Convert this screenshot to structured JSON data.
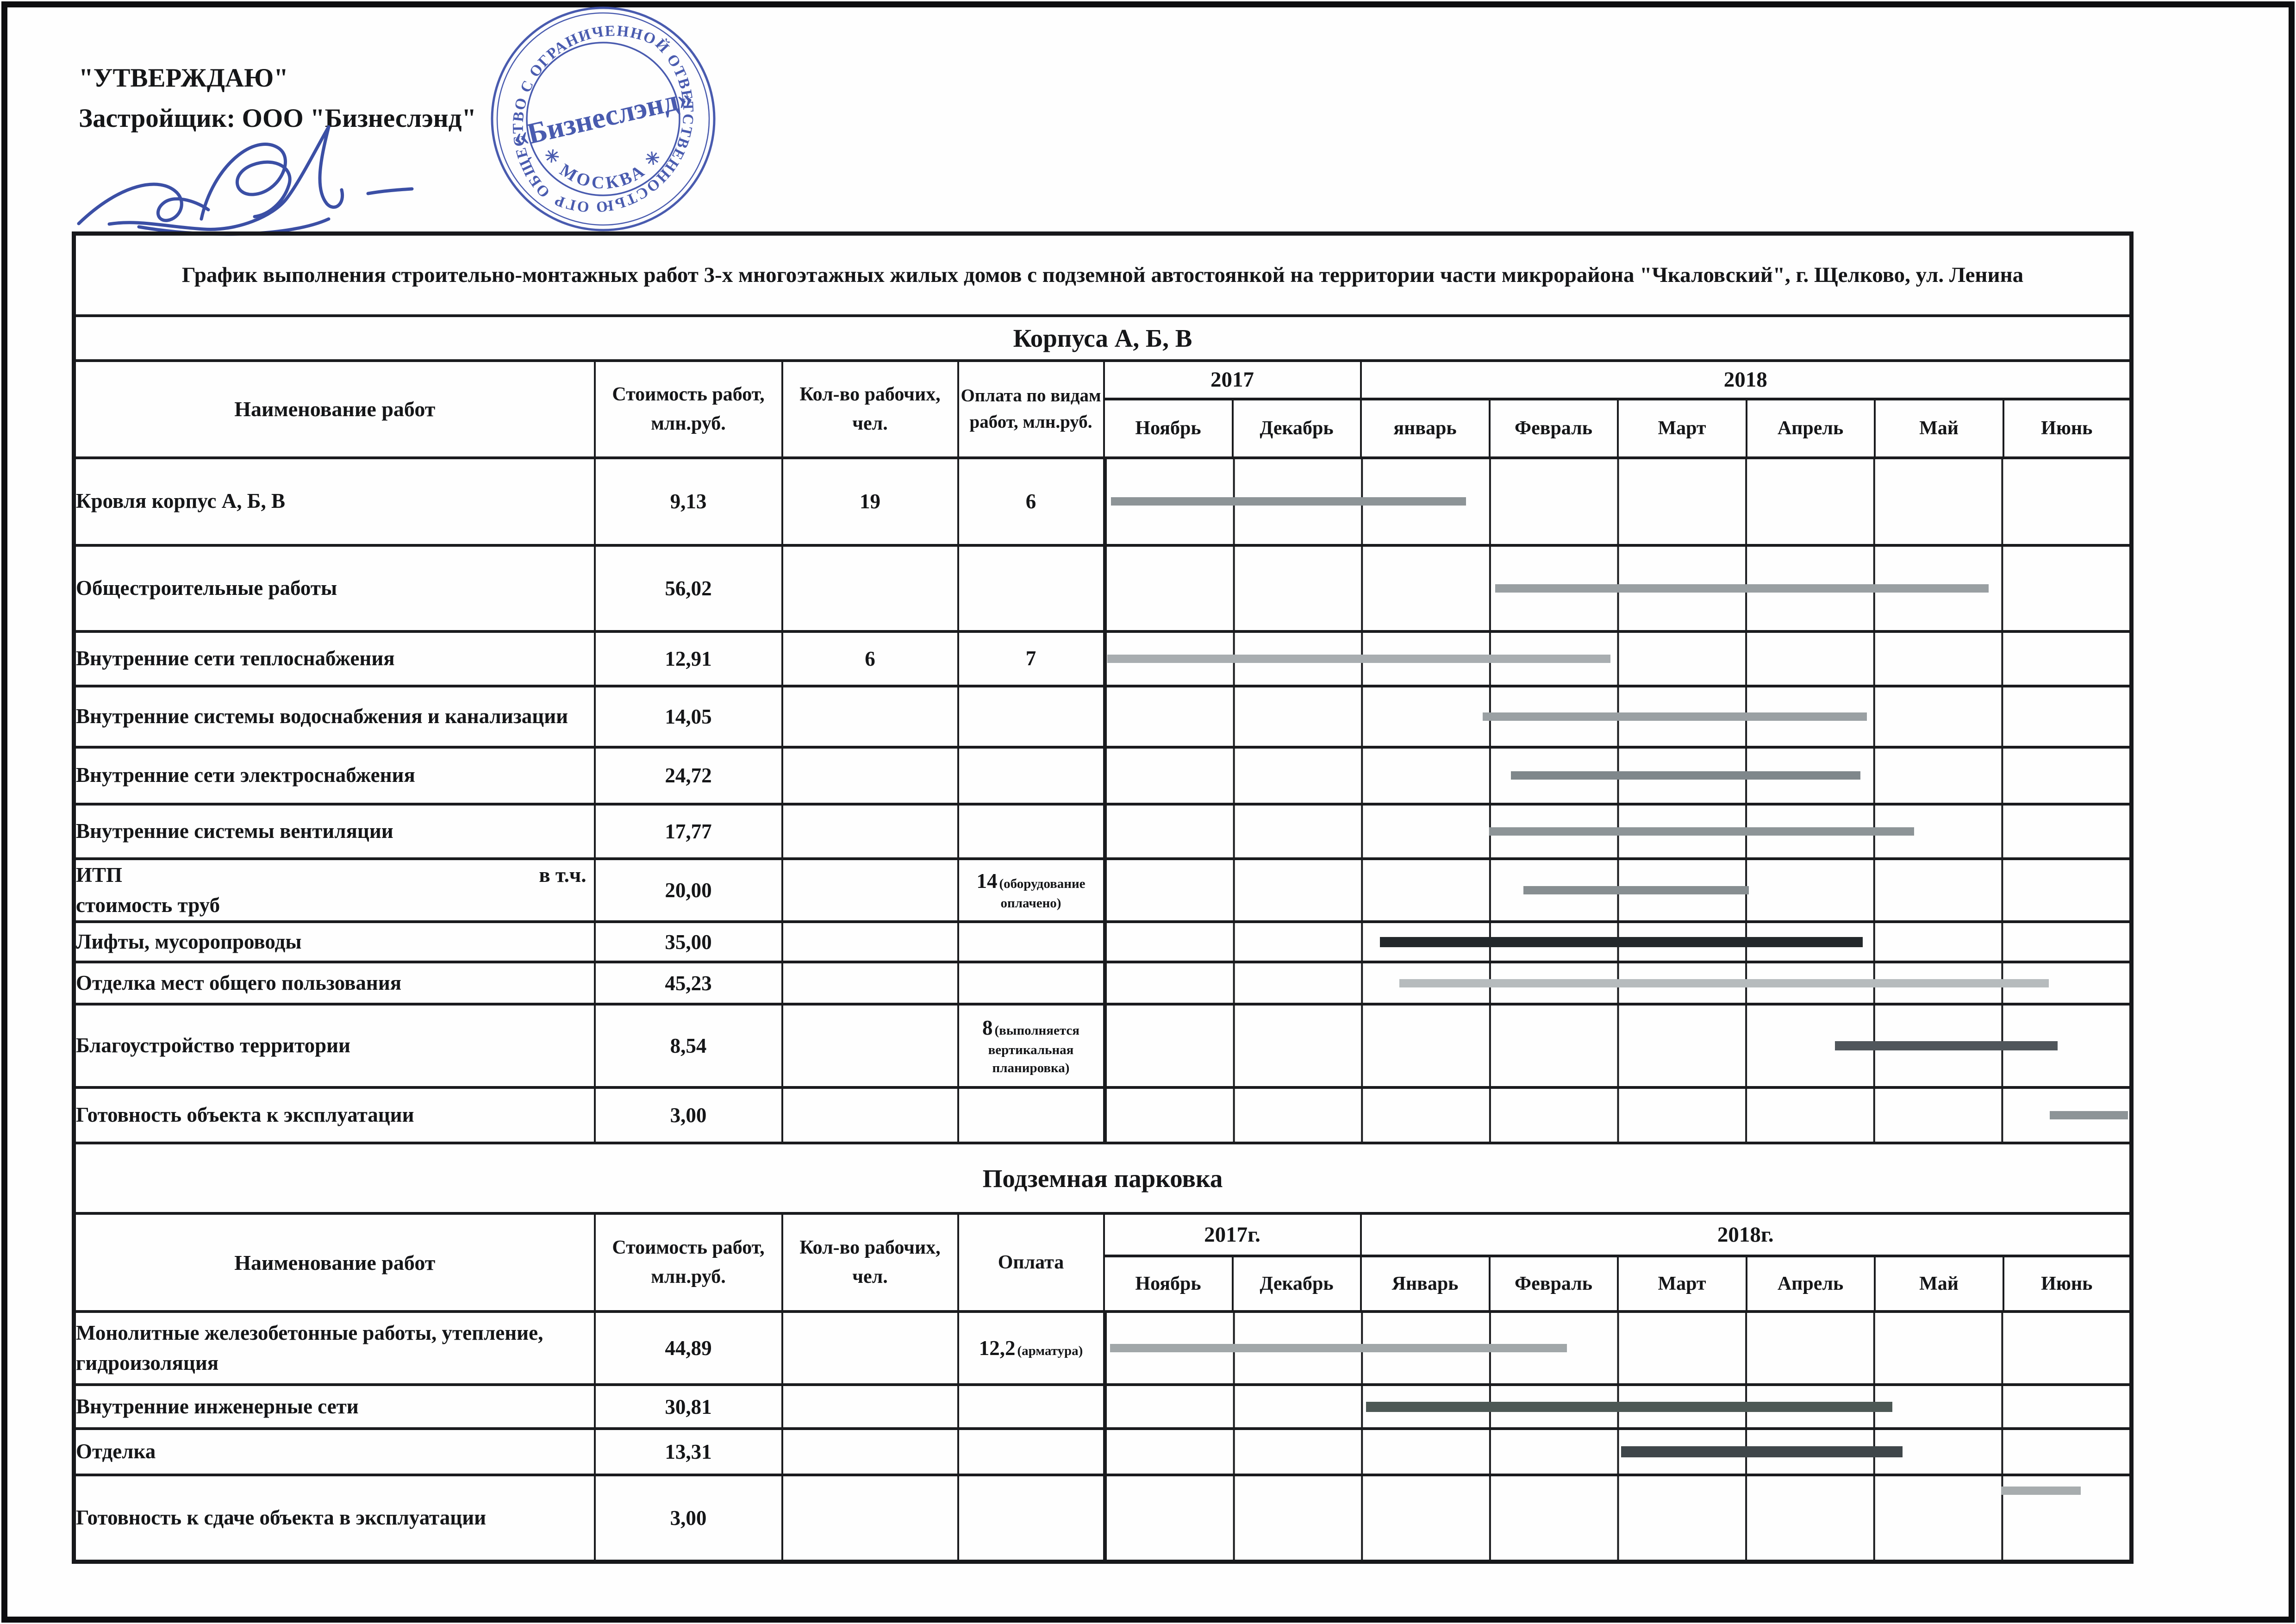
{
  "approval": {
    "line1": "\"УТВЕРЖДАЮ\"",
    "line2": "Застройщик: ООО \"Бизнеслэнд\""
  },
  "stamp": {
    "ring_text": "ОБЩЕСТВО С ОГРАНИЧЕННОЙ ОТВЕТСТВЕННОСТЬЮ ОГРН 1137746077534",
    "bottom_text": "✳ МОСКВА ✳",
    "center_text": "«Бизнеслэнд»",
    "ink_color": "#3a4ea9"
  },
  "title": "График выполнения строительно-монтажных работ 3-х многоэтажных жилых домов с подземной автостоянкой на территории части микрорайона \"Чкаловский\", г. Щелково, ул. Ленина",
  "table1": {
    "section": "Корпуса А, Б, В",
    "headers": {
      "name": "Наименование работ",
      "cost": "Стоимость работ, млн.руб.",
      "workers": "Кол-во рабочих, чел.",
      "payment": "Оплата по видам работ, млн.руб."
    },
    "years": [
      "2017",
      "2018"
    ],
    "months": [
      "Ноябрь",
      "Декабрь",
      "январь",
      "Февраль",
      "Март",
      "Апрель",
      "Май",
      "Июнь"
    ],
    "rows": [
      {
        "name": "Кровля корпус А, Б, В",
        "cost": "9,13",
        "workers": "19",
        "payment_value": "6",
        "payment_note": "",
        "bar": {
          "start": 0.05,
          "end": 2.82,
          "color": "#8d9497"
        }
      },
      {
        "name": "Общестроительные работы",
        "cost": "56,02",
        "workers": "",
        "payment_value": "",
        "payment_note": "",
        "bar": {
          "start": 3.05,
          "end": 6.9,
          "color": "#999fa2"
        }
      },
      {
        "name": "Внутренние сети теплоснабжения",
        "cost": "12,91",
        "workers": "6",
        "payment_value": "7",
        "payment_note": "",
        "bar": {
          "start": 0.02,
          "end": 3.95,
          "color": "#a8adb0"
        }
      },
      {
        "name": "Внутренние системы водоснабжения и канализации",
        "cost": "14,05",
        "workers": "",
        "payment_value": "",
        "payment_note": "",
        "bar": {
          "start": 2.95,
          "end": 5.95,
          "color": "#9aa0a3"
        }
      },
      {
        "name": "Внутренние сети электроснабжения",
        "cost": "24,72",
        "workers": "",
        "payment_value": "",
        "payment_note": "",
        "bar": {
          "start": 3.17,
          "end": 5.9,
          "color": "#7f878b"
        }
      },
      {
        "name": "Внутренние системы  вентиляции",
        "cost": "17,77",
        "workers": "",
        "payment_value": "",
        "payment_note": "",
        "bar": {
          "start": 3.0,
          "end": 6.32,
          "color": "#8d9497"
        }
      },
      {
        "name": "ИТП",
        "name_suffix": "в т.ч.",
        "name_line2": "стоимость  труб",
        "cost": "20,00",
        "workers": "",
        "payment_value": "14",
        "payment_note": "(оборудование оплачено)",
        "bar": {
          "start": 3.27,
          "end": 5.03,
          "color": "#878e91"
        }
      },
      {
        "name": "Лифты, мусоропроводы",
        "cost": "35,00",
        "workers": "",
        "payment_value": "",
        "payment_note": "",
        "bar": {
          "start": 2.15,
          "end": 5.92,
          "color": "#23282b",
          "h": 22
        }
      },
      {
        "name": "Отделка мест общего пользования",
        "cost": "45,23",
        "workers": "",
        "payment_value": "",
        "payment_note": "",
        "bar": {
          "start": 2.3,
          "end": 7.37,
          "color": "#b6bbbd"
        }
      },
      {
        "name": "Благоустройство территории",
        "cost": "8,54",
        "workers": "",
        "payment_value": "8",
        "payment_note": "(выполняется вертикальная планировка)",
        "bar": {
          "start": 5.7,
          "end": 7.44,
          "color": "#50565b",
          "h": 20
        }
      },
      {
        "name": "Готовность  объекта к эксплуатации",
        "cost": "3,00",
        "workers": "",
        "payment_value": "",
        "payment_note": "",
        "bar": {
          "start": 7.38,
          "end": 7.99,
          "color": "#8d9497"
        }
      }
    ]
  },
  "table2": {
    "section": "Подземная парковка",
    "headers": {
      "name": "Наименование работ",
      "cost": "Стоимость работ, млн.руб.",
      "workers": "Кол-во рабочих, чел.",
      "payment": "Оплата"
    },
    "years": [
      "2017г.",
      "2018г."
    ],
    "months": [
      "Ноябрь",
      "Декабрь",
      "Январь",
      "Февраль",
      "Март",
      "Апрель",
      "Май",
      "Июнь"
    ],
    "rows": [
      {
        "name": "Монолитные железобетонные работы, утепление, гидроизоляция",
        "cost": "44,89",
        "workers": "",
        "payment_value": "12,2",
        "payment_note": "(арматура)",
        "bar": {
          "start": 0.04,
          "end": 3.61,
          "color": "#a1a7a9"
        }
      },
      {
        "name": "Внутренние инженерные сети",
        "cost": "30,81",
        "workers": "",
        "payment_value": "",
        "payment_note": "",
        "bar": {
          "start": 2.04,
          "end": 6.15,
          "color": "#4d5855",
          "h": 22
        }
      },
      {
        "name": "Отделка",
        "cost": "13,31",
        "workers": "",
        "payment_value": "",
        "payment_note": "",
        "bar": {
          "start": 4.03,
          "end": 6.23,
          "color": "#3f464a",
          "h": 24
        }
      },
      {
        "name": "Готовность к сдаче объекта в эксплуатации",
        "cost": "3,00",
        "workers": "",
        "payment_value": "",
        "payment_note": "",
        "bar": {
          "start": 7.0,
          "end": 7.62,
          "color": "#a7acae",
          "valign": "top"
        }
      }
    ]
  }
}
